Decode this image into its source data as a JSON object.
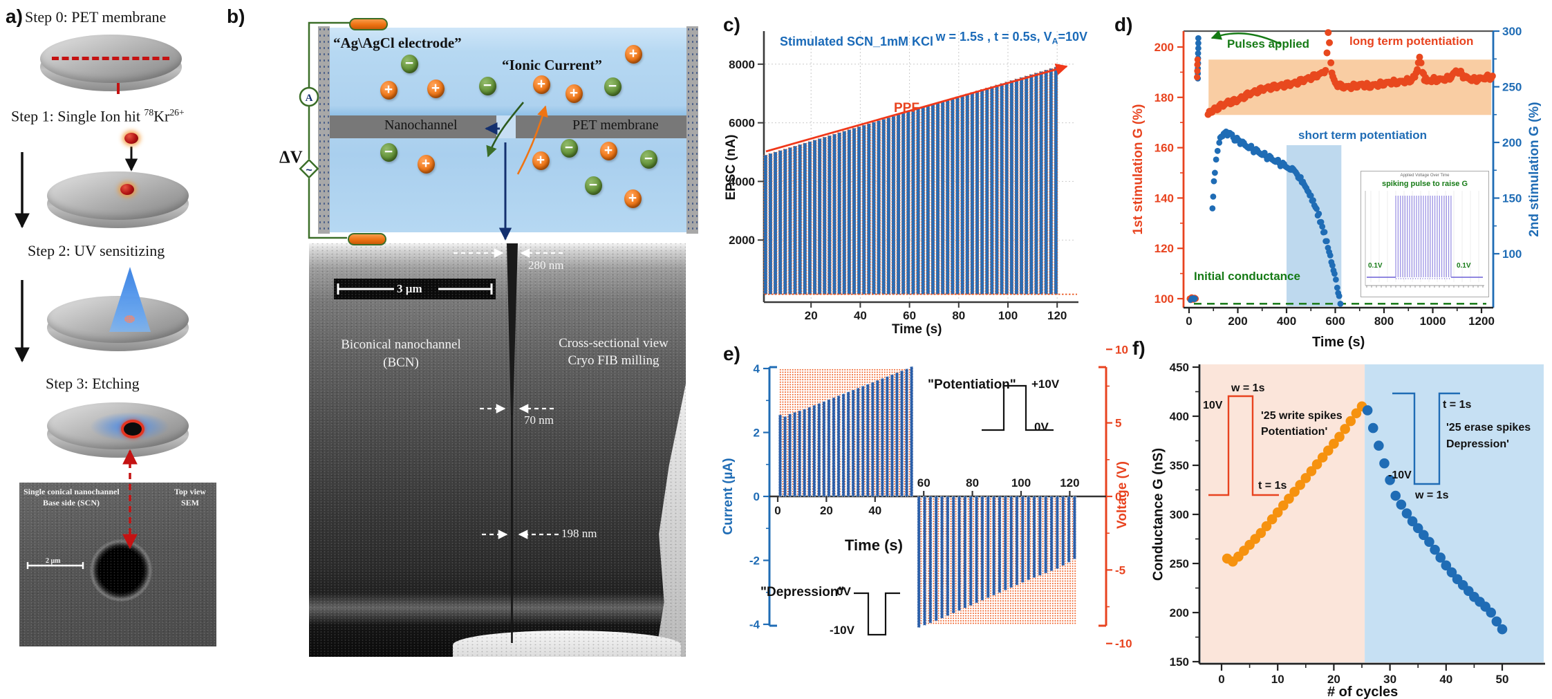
{
  "panel_labels": {
    "a": "a)",
    "b": "b)",
    "c": "c)",
    "d": "d)",
    "e": "e)",
    "f": "f)"
  },
  "panel_a": {
    "step0": "Step 0: PET membrane",
    "step1": {
      "pre": "Step 1: Single Ion hit ",
      "sup1": "78",
      "mid": "Kr",
      "sup2": "26+"
    },
    "step2": "Step 2: UV sensitizing",
    "step3": "Step 3: Etching",
    "sem": {
      "title1": "Single conical nanochannel",
      "title2": "Base side (SCN)",
      "corner1": "Top view",
      "corner2": "SEM",
      "scale": "2 µm"
    }
  },
  "panel_b": {
    "electrode": "“Ag\\AgCl electrode”",
    "ionic": "“Ionic Current”",
    "dv": "ΔV",
    "ammeter": "A",
    "source": "~",
    "nanochannel": "Nanochannel",
    "pet": "PET membrane",
    "plus": "+",
    "minus": "−",
    "sem": {
      "scale": "3 µm",
      "bcn1": "Biconical nanochannel",
      "bcn2": "(BCN)",
      "cross1": "Cross-sectional view",
      "cross2": "Cryo FIB milling",
      "d280": "280 nm",
      "d70": "70 nm",
      "d198": "198 nm"
    }
  },
  "chart_data": [
    {
      "id": "c",
      "type": "bar",
      "title": "Stimulated SCN_1mM KCl",
      "condition": {
        "prefix": "w = 1.5s , t = 0.5s, V",
        "sub": "A",
        "suffix": "=10V"
      },
      "ppf_label": "PPF",
      "xlabel": "Time (s)",
      "ylabel": "EPSC (nA)",
      "xticks": [
        20,
        40,
        60,
        80,
        100,
        120
      ],
      "yticks": [
        2000,
        4000,
        6000,
        8000
      ],
      "xlim": [
        0,
        125
      ],
      "ylim": [
        0,
        8600
      ],
      "grid": true,
      "baseline_nA": 150,
      "spike_start_s": 1.5,
      "spike_period_s": 2,
      "spike_width_s": 1.4,
      "peaks_nA": [
        4900,
        4951,
        5002,
        5053,
        5103,
        5154,
        5205,
        5256,
        5307,
        5358,
        5409,
        5459,
        5510,
        5561,
        5612,
        5663,
        5714,
        5765,
        5815,
        5866,
        5917,
        5968,
        6019,
        6070,
        6121,
        6171,
        6222,
        6273,
        6324,
        6375,
        6426,
        6477,
        6527,
        6578,
        6629,
        6680,
        6731,
        6782,
        6833,
        6883,
        6934,
        6985,
        7036,
        7087,
        7138,
        7189,
        7239,
        7290,
        7341,
        7392,
        7443,
        7494,
        7545,
        7595,
        7646,
        7697,
        7748,
        7799,
        7850,
        7900
      ]
    },
    {
      "id": "d",
      "type": "scatter",
      "xlabel": "Time (s)",
      "ylabel_left": "1st stimulation G (%)",
      "ylabel_right": "2nd stimulation G (%)",
      "xticks": [
        0,
        200,
        400,
        600,
        800,
        1000,
        1200
      ],
      "yticks_left": [
        100,
        120,
        140,
        160,
        180,
        200
      ],
      "yticks_right": [
        100,
        150,
        200,
        250,
        300
      ],
      "xlim": [
        -25,
        1265
      ],
      "ylim_left": [
        96,
        206
      ],
      "ylim_right": [
        52,
        300
      ],
      "annotations": {
        "pulses": "Pulses applied",
        "ltp": "long term potentiation",
        "stp": "short term potentiation",
        "init": "Initial conductance"
      },
      "bands": {
        "long_term": {
          "t": [
            80,
            1240
          ],
          "G": [
            173,
            195
          ]
        },
        "short_term": {
          "t": [
            400,
            625
          ],
          "G": [
            97,
            161
          ]
        }
      },
      "initial_G_line": 98,
      "series": [
        {
          "name": "1st stimulation (red)",
          "color": "#e8481e",
          "initial": [
            [
              3,
              100
            ],
            [
              7,
              99.5
            ],
            [
              11,
              100.5
            ],
            [
              15,
              100
            ],
            [
              19,
              99.7
            ],
            [
              23,
              100.3
            ],
            [
              27,
              100
            ]
          ],
          "pulse_cluster": [
            [
              33,
              188
            ],
            [
              34,
              190.5
            ],
            [
              34,
              193
            ],
            [
              35,
              195
            ]
          ],
          "trace": [
            [
              78,
              173.5
            ],
            [
              100,
              175
            ],
            [
              130,
              176.5
            ],
            [
              160,
              178
            ],
            [
              190,
              178.5
            ],
            [
              220,
              180
            ],
            [
              250,
              181.5
            ],
            [
              280,
              182.5
            ],
            [
              310,
              183.5
            ],
            [
              340,
              184
            ],
            [
              370,
              184.5
            ],
            [
              400,
              185
            ],
            [
              430,
              185.5
            ],
            [
              460,
              186.5
            ],
            [
              490,
              187.5
            ],
            [
              520,
              188.5
            ],
            [
              545,
              189.5
            ],
            [
              560,
              191
            ],
            [
              566,
              198
            ],
            [
              571,
              205
            ],
            [
              576,
              201
            ],
            [
              582,
              193
            ],
            [
              590,
              188
            ],
            [
              600,
              185.5
            ],
            [
              620,
              184.5
            ],
            [
              650,
              184
            ],
            [
              680,
              184.5
            ],
            [
              710,
              185
            ],
            [
              740,
              184.5
            ],
            [
              770,
              185
            ],
            [
              800,
              185.5
            ],
            [
              830,
              186
            ],
            [
              860,
              186
            ],
            [
              890,
              186.5
            ],
            [
              915,
              187
            ],
            [
              932,
              189
            ],
            [
              941,
              194
            ],
            [
              946,
              196.5
            ],
            [
              952,
              194
            ],
            [
              958,
              190
            ],
            [
              966,
              187.5
            ],
            [
              980,
              186.5
            ],
            [
              1000,
              187
            ],
            [
              1030,
              187
            ],
            [
              1060,
              187.5
            ],
            [
              1080,
              188.5
            ],
            [
              1095,
              190.5
            ],
            [
              1110,
              190
            ],
            [
              1125,
              188.5
            ],
            [
              1145,
              187.5
            ],
            [
              1170,
              187
            ],
            [
              1200,
              187.5
            ],
            [
              1225,
              188
            ],
            [
              1245,
              188
            ]
          ]
        },
        {
          "name": "2nd stimulation (blue)",
          "color": "#1f6cb5",
          "initial": [
            [
              5,
              99.3
            ],
            [
              10,
              100.2
            ],
            [
              14,
              99.8
            ],
            [
              18,
              100.4
            ],
            [
              22,
              99.6
            ],
            [
              26,
              100.1
            ]
          ],
          "pulse_cluster": [
            [
              36,
              187.5
            ],
            [
              36,
              189.5
            ],
            [
              36,
              191.5
            ],
            [
              37,
              193.5
            ],
            [
              37,
              195.5
            ],
            [
              37,
              197.5
            ],
            [
              38,
              199.5
            ],
            [
              38,
              201.5
            ],
            [
              38,
              203.5
            ]
          ],
          "trace": [
            [
              96,
              135
            ],
            [
              99,
              141
            ],
            [
              102,
              146
            ],
            [
              106,
              151
            ],
            [
              111,
              156
            ],
            [
              117,
              159.5
            ],
            [
              124,
              162.5
            ],
            [
              132,
              164.5
            ],
            [
              142,
              165.8
            ],
            [
              152,
              166.2
            ],
            [
              163,
              165.5
            ],
            [
              176,
              164.5
            ],
            [
              192,
              163.5
            ],
            [
              210,
              162.5
            ],
            [
              230,
              161
            ],
            [
              250,
              160
            ],
            [
              270,
              159
            ],
            [
              290,
              158
            ],
            [
              310,
              157
            ],
            [
              330,
              156
            ],
            [
              350,
              155
            ],
            [
              370,
              154
            ],
            [
              390,
              153
            ],
            [
              410,
              152
            ],
            [
              428,
              151
            ],
            [
              443,
              149.5
            ],
            [
              458,
              147.5
            ],
            [
              472,
              145.5
            ],
            [
              486,
              143
            ],
            [
              500,
              140.5
            ],
            [
              514,
              137.5
            ],
            [
              528,
              134
            ],
            [
              542,
              130
            ],
            [
              556,
              125.5
            ],
            [
              570,
              120.5
            ],
            [
              584,
              115
            ],
            [
              597,
              109.5
            ],
            [
              608,
              104.5
            ],
            [
              616,
              100.5
            ],
            [
              621,
              98.5
            ]
          ]
        }
      ],
      "inset": {
        "title": "Applied Voltage Over Time",
        "label": "spiking pulse to raise G",
        "left_v": "0.1V",
        "right_v": "0.1V"
      }
    },
    {
      "id": "e",
      "type": "bar",
      "xlabel": "Time (s)",
      "ylabel_left": "Current (µA)",
      "ylabel_right": "Voltage (V)",
      "yticks_left": [
        -4,
        -2,
        0,
        2,
        4
      ],
      "yticks_right": [
        -10,
        -5,
        0,
        5,
        10
      ],
      "xticks_lower": [
        0,
        20,
        40
      ],
      "xticks_upper": [
        60,
        80,
        100,
        120
      ],
      "xlim": [
        -3,
        124
      ],
      "ylim": [
        -4.35,
        4.35
      ],
      "potentiation": {
        "label": "\"Potentiation\"",
        "hi": "+10V",
        "lo": "0V",
        "t_start": 1,
        "period_s": 2,
        "bars_uA": [
          2.55,
          2.5,
          2.58,
          2.63,
          2.68,
          2.73,
          2.79,
          2.85,
          2.91,
          2.97,
          3.03,
          3.09,
          3.15,
          3.21,
          3.27,
          3.33,
          3.39,
          3.45,
          3.51,
          3.57,
          3.63,
          3.69,
          3.75,
          3.81,
          3.87,
          3.93,
          3.99,
          4.06
        ]
      },
      "depression": {
        "label": "\"Depression\"",
        "hi": "0V",
        "lo": "-10V",
        "t_start": 58,
        "period_s": 2.37,
        "bars_uA": [
          -4.1,
          -4.03,
          -3.96,
          -3.89,
          -3.81,
          -3.73,
          -3.65,
          -3.57,
          -3.49,
          -3.41,
          -3.33,
          -3.25,
          -3.17,
          -3.09,
          -3.01,
          -2.93,
          -2.85,
          -2.77,
          -2.69,
          -2.61,
          -2.54,
          -2.47,
          -2.4,
          -2.33,
          -2.26,
          -2.16,
          -2.06,
          -1.96
        ]
      }
    },
    {
      "id": "f",
      "type": "scatter",
      "xlabel": "# of cycles",
      "ylabel": "Conductance G (nS)",
      "xticks": [
        0,
        10,
        20,
        30,
        40,
        50
      ],
      "yticks": [
        150,
        200,
        250,
        300,
        350,
        400,
        450
      ],
      "xlim": [
        -4,
        57
      ],
      "ylim": [
        149,
        453
      ],
      "boundary_cycle": 25.5,
      "write": {
        "name": "25 write spikes (potentiation)",
        "color": "#f6920f",
        "caption1": "'25 write spikes",
        "caption2": "Potentiation'",
        "pulse": {
          "v": "10V",
          "w": "w = 1s",
          "t": "t = 1s"
        },
        "values_nS": [
          255,
          252,
          257,
          263,
          269,
          275,
          281,
          288,
          295,
          302,
          309,
          316,
          323,
          330,
          337,
          344,
          351,
          358,
          365,
          372,
          379,
          387,
          395,
          403,
          410
        ]
      },
      "erase": {
        "name": "25 erase spikes (depression)",
        "color": "#1f6cb5",
        "caption1": "'25 erase spikes",
        "caption2": "Depression'",
        "pulse": {
          "v": "-10V",
          "w": "w = 1s",
          "t": "t = 1s"
        },
        "values_nS": [
          406,
          388,
          370,
          352,
          335,
          319,
          310,
          301,
          293,
          286,
          279,
          272,
          264,
          256,
          248,
          241,
          234,
          228,
          222,
          216,
          211,
          206,
          200,
          191,
          183
        ]
      }
    }
  ]
}
